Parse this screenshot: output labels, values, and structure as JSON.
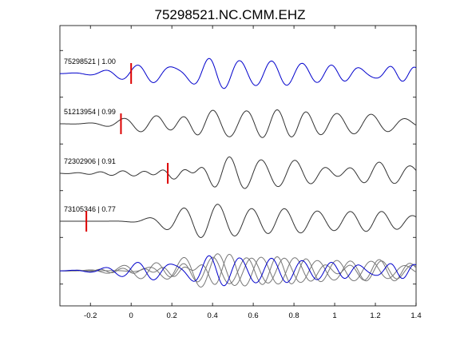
{
  "title": "75298521.NC.CMM.EHZ",
  "chart_data": {
    "type": "line",
    "title": "75298521.NC.CMM.EHZ",
    "xlabel": "",
    "ylabel": "",
    "xlim": [
      -0.35,
      1.4
    ],
    "x_ticks": [
      -0.2,
      0,
      0.2,
      0.4,
      0.6,
      0.8,
      1,
      1.2,
      1.4
    ],
    "x_tick_labels": [
      "-0.2",
      "0",
      "0.2",
      "0.4",
      "0.6",
      "0.8",
      "1",
      "1.2",
      "1.4"
    ],
    "y_ticks_count": 6,
    "grid": false,
    "series": [
      {
        "name": "75298521 | 1.00",
        "color": "#0000cc",
        "pick_time": 0.0,
        "pick_color": "#dd0000",
        "waves": [
          {
            "t": 0.15,
            "tau": 0.25,
            "freq": 6.3,
            "amp": 0.45,
            "phase": 0.0
          },
          {
            "t": 0.38,
            "tau": 0.18,
            "freq": 7.2,
            "amp": 0.55,
            "phase": 1.2
          },
          {
            "t": 0.7,
            "tau": 0.22,
            "freq": 6.8,
            "amp": 0.5,
            "phase": 2.0
          },
          {
            "t": 1.1,
            "tau": 0.25,
            "freq": 7.5,
            "amp": 0.32,
            "phase": 0.7
          },
          {
            "t": 1.3,
            "tau": 0.18,
            "freq": 9.0,
            "amp": 0.25,
            "phase": 2.4
          }
        ]
      },
      {
        "name": "51213954 | 0.99",
        "color": "#333333",
        "pick_time": -0.05,
        "pick_color": "#dd0000",
        "waves": [
          {
            "t": 0.1,
            "tau": 0.2,
            "freq": 5.8,
            "amp": 0.35,
            "phase": 0.3
          },
          {
            "t": 0.38,
            "tau": 0.2,
            "freq": 6.5,
            "amp": 0.6,
            "phase": 0.9
          },
          {
            "t": 0.72,
            "tau": 0.25,
            "freq": 7.0,
            "amp": 0.55,
            "phase": 1.6
          },
          {
            "t": 1.15,
            "tau": 0.25,
            "freq": 6.0,
            "amp": 0.4,
            "phase": 0.4
          }
        ]
      },
      {
        "name": "72302906 | 0.91",
        "color": "#333333",
        "pick_time": 0.18,
        "pick_color": "#dd0000",
        "waves": [
          {
            "t": 0.05,
            "tau": 0.25,
            "freq": 9.0,
            "amp": 0.12,
            "phase": 0.5
          },
          {
            "t": 0.25,
            "tau": 0.12,
            "freq": 8.0,
            "amp": 0.35,
            "phase": 1.1
          },
          {
            "t": 0.45,
            "tau": 0.18,
            "freq": 6.5,
            "amp": 0.6,
            "phase": 0.2
          },
          {
            "t": 0.8,
            "tau": 0.25,
            "freq": 6.0,
            "amp": 0.55,
            "phase": 1.3
          },
          {
            "t": 1.2,
            "tau": 0.25,
            "freq": 6.5,
            "amp": 0.5,
            "phase": 0.8
          }
        ]
      },
      {
        "name": "73105346 | 0.77",
        "color": "#333333",
        "pick_time": -0.22,
        "pick_color": "#dd0000",
        "waves": [
          {
            "t": 0.22,
            "tau": 0.15,
            "freq": 5.5,
            "amp": 0.25,
            "phase": 0.0
          },
          {
            "t": 0.4,
            "tau": 0.18,
            "freq": 5.8,
            "amp": 0.6,
            "phase": 0.7
          },
          {
            "t": 0.75,
            "tau": 0.25,
            "freq": 6.2,
            "amp": 0.5,
            "phase": 1.5
          },
          {
            "t": 1.2,
            "tau": 0.25,
            "freq": 6.5,
            "amp": 0.4,
            "phase": 0.3
          }
        ]
      }
    ]
  }
}
